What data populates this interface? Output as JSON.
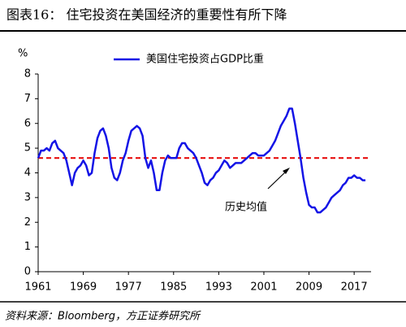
{
  "chart_data": {
    "type": "line",
    "title": "图表16：  住宅投资在美国经济的重要性有所下降",
    "y_label": "%",
    "source": "资料来源：Bloomberg，方正证券研究所",
    "x": [
      1961,
      1961.5,
      1962,
      1962.5,
      1963,
      1963.5,
      1964,
      1964.5,
      1965,
      1965.5,
      1966,
      1966.5,
      1967,
      1967.5,
      1968,
      1968.5,
      1969,
      1969.5,
      1970,
      1970.5,
      1971,
      1971.5,
      1972,
      1972.5,
      1973,
      1973.5,
      1974,
      1974.5,
      1975,
      1975.5,
      1976,
      1976.5,
      1977,
      1977.5,
      1978,
      1978.5,
      1979,
      1979.5,
      1980,
      1980.5,
      1981,
      1981.5,
      1982,
      1982.5,
      1983,
      1983.5,
      1984,
      1984.5,
      1985,
      1985.5,
      1986,
      1986.5,
      1987,
      1987.5,
      1988,
      1988.5,
      1989,
      1989.5,
      1990,
      1990.5,
      1991,
      1991.5,
      1992,
      1992.5,
      1993,
      1993.5,
      1994,
      1994.5,
      1995,
      1995.5,
      1996,
      1996.5,
      1997,
      1997.5,
      1998,
      1998.5,
      1999,
      1999.5,
      2000,
      2000.5,
      2001,
      2001.5,
      2002,
      2002.5,
      2003,
      2003.5,
      2004,
      2004.5,
      2005,
      2005.5,
      2006,
      2006.5,
      2007,
      2007.5,
      2008,
      2008.5,
      2009,
      2009.5,
      2010,
      2010.5,
      2011,
      2011.5,
      2012,
      2012.5,
      2013,
      2013.5,
      2014,
      2014.5,
      2015,
      2015.5,
      2016,
      2016.5,
      2017,
      2017.5,
      2018,
      2018.5,
      2019
    ],
    "series": [
      {
        "name": "美国住宅投资占GDP比重",
        "color": "#1414e6",
        "values": [
          4.6,
          4.9,
          4.9,
          5.0,
          4.9,
          5.2,
          5.3,
          5.0,
          4.9,
          4.8,
          4.5,
          4.0,
          3.5,
          4.0,
          4.2,
          4.3,
          4.5,
          4.3,
          3.9,
          4.0,
          4.8,
          5.4,
          5.7,
          5.8,
          5.5,
          5.0,
          4.2,
          3.8,
          3.7,
          4.0,
          4.5,
          4.8,
          5.3,
          5.7,
          5.8,
          5.9,
          5.8,
          5.5,
          4.6,
          4.2,
          4.5,
          4.0,
          3.3,
          3.3,
          4.0,
          4.5,
          4.7,
          4.6,
          4.6,
          4.6,
          5.0,
          5.2,
          5.2,
          5.0,
          4.9,
          4.8,
          4.6,
          4.3,
          4.0,
          3.6,
          3.5,
          3.7,
          3.8,
          4.0,
          4.1,
          4.3,
          4.5,
          4.4,
          4.2,
          4.3,
          4.4,
          4.4,
          4.4,
          4.5,
          4.6,
          4.7,
          4.8,
          4.8,
          4.7,
          4.7,
          4.7,
          4.8,
          4.9,
          5.1,
          5.3,
          5.6,
          5.9,
          6.1,
          6.3,
          6.6,
          6.6,
          6.0,
          5.3,
          4.6,
          3.8,
          3.2,
          2.7,
          2.6,
          2.6,
          2.4,
          2.4,
          2.5,
          2.6,
          2.8,
          3.0,
          3.1,
          3.2,
          3.3,
          3.5,
          3.6,
          3.8,
          3.8,
          3.9,
          3.8,
          3.8,
          3.7,
          3.7
        ]
      }
    ],
    "mean_line": {
      "value": 4.6,
      "color": "#e60000",
      "label": "历史均值"
    },
    "xlim": [
      1961,
      2020
    ],
    "xticks": [
      1961,
      1969,
      1977,
      1985,
      1993,
      2001,
      2009,
      2017
    ],
    "ylim": [
      0,
      8
    ],
    "yticks": [
      0,
      1,
      2,
      3,
      4,
      5,
      6,
      7,
      8
    ],
    "legend": "top"
  }
}
